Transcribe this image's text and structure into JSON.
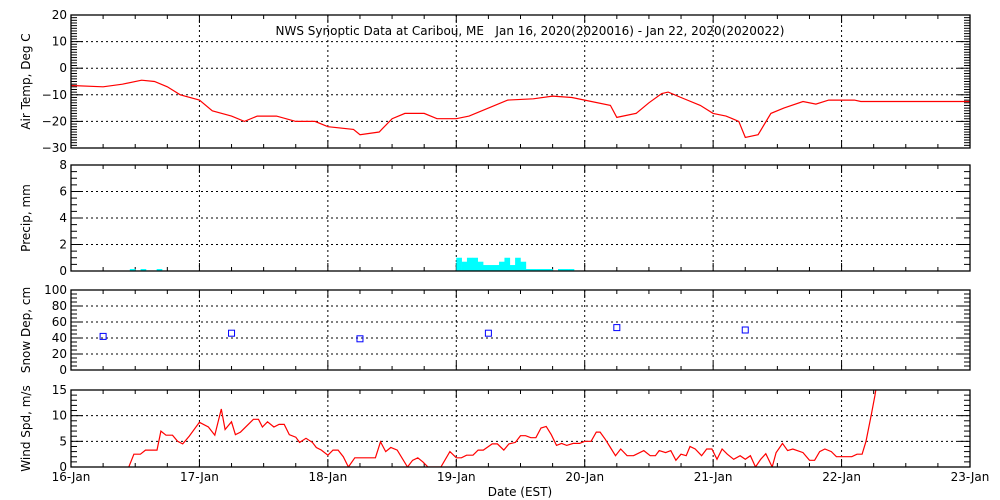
{
  "chart_data": {
    "title": "NWS Synoptic Data at Caribou, ME   Jan 16, 2020(2020016) - Jan 22, 2020(2020022)",
    "xlabel": "Date (EST)",
    "x_units": "days since 16-Jan 00:00 EST",
    "xlim": [
      0,
      7
    ],
    "x_tick_labels": [
      "16-Jan",
      "17-Jan",
      "18-Jan",
      "19-Jan",
      "20-Jan",
      "21-Jan",
      "22-Jan",
      "23-Jan"
    ],
    "grid": true,
    "panels": [
      {
        "type": "line",
        "name": "air-temp",
        "ylabel": "Air Temp, Deg C",
        "ylim": [
          -30,
          20
        ],
        "y_ticks": [
          20,
          10,
          0,
          -10,
          -20,
          -30
        ],
        "color": "#ff0000",
        "x": [
          0,
          0.25,
          0.4,
          0.55,
          0.65,
          0.75,
          0.85,
          1.0,
          1.1,
          1.25,
          1.35,
          1.45,
          1.6,
          1.75,
          1.9,
          2.0,
          2.2,
          2.25,
          2.4,
          2.5,
          2.6,
          2.75,
          2.85,
          3.0,
          3.1,
          3.25,
          3.4,
          3.6,
          3.75,
          3.9,
          4.0,
          4.2,
          4.25,
          4.4,
          4.5,
          4.6,
          4.65,
          4.75,
          4.9,
          5.0,
          5.1,
          5.15,
          5.2,
          5.25,
          5.35,
          5.45,
          5.55,
          5.7,
          5.8,
          5.9,
          6.1,
          6.15,
          7.0
        ],
        "y": [
          -6.5,
          -7,
          -6,
          -4.5,
          -5,
          -7,
          -10,
          -12,
          -16,
          -18,
          -20,
          -18,
          -18,
          -20,
          -20,
          -22,
          -23,
          -25,
          -24,
          -19,
          -17,
          -17,
          -19,
          -19,
          -18,
          -15,
          -12,
          -11.5,
          -10.5,
          -11,
          -12,
          -14,
          -18.5,
          -17,
          -13,
          -9.5,
          -9,
          -11,
          -14,
          -17,
          -18,
          -19,
          -20,
          -26,
          -25,
          -17,
          -15,
          -12.5,
          -13.5,
          -12,
          -12,
          -12.5,
          -12.5
        ]
      },
      {
        "type": "bar",
        "name": "precip",
        "ylabel": "Precip, mm",
        "ylim": [
          0,
          8
        ],
        "y_ticks": [
          8,
          6,
          4,
          2,
          0
        ],
        "color": "#00ffff",
        "bar_width_days": 0.0417,
        "x": [
          0.458,
          0.542,
          0.667,
          3.0,
          3.042,
          3.083,
          3.125,
          3.167,
          3.208,
          3.25,
          3.292,
          3.333,
          3.375,
          3.417,
          3.458,
          3.5,
          3.542,
          3.583,
          3.625,
          3.667,
          3.708,
          3.792,
          3.833,
          3.875
        ],
        "y": [
          0.15,
          0.15,
          0.15,
          1.0,
          0.7,
          1.0,
          1.0,
          0.7,
          0.45,
          0.45,
          0.45,
          0.7,
          1.0,
          0.45,
          1.0,
          0.7,
          0.15,
          0.15,
          0.15,
          0.15,
          0.15,
          0.15,
          0.15,
          0.15
        ]
      },
      {
        "type": "scatter",
        "name": "snow-depth",
        "ylabel": "Snow Dep, cm",
        "ylim": [
          0,
          100
        ],
        "y_ticks": [
          100,
          80,
          60,
          40,
          20,
          0
        ],
        "color": "#0000ff",
        "x": [
          0.25,
          1.25,
          2.25,
          3.25,
          4.25,
          5.25
        ],
        "y": [
          42,
          46,
          39,
          46,
          53,
          50
        ]
      },
      {
        "type": "line",
        "name": "wind-speed",
        "ylabel": "Wind Spd, m/s",
        "ylim": [
          0,
          15
        ],
        "y_ticks": [
          15,
          10,
          5,
          0
        ],
        "color": "#ff0000",
        "x": [
          0.45,
          0.49,
          0.54,
          0.58,
          0.67,
          0.7,
          0.74,
          0.79,
          0.83,
          0.87,
          0.92,
          1.0,
          1.07,
          1.12,
          1.17,
          1.2,
          1.25,
          1.28,
          1.32,
          1.42,
          1.46,
          1.49,
          1.53,
          1.58,
          1.62,
          1.66,
          1.7,
          1.75,
          1.78,
          1.83,
          1.88,
          1.91,
          1.95,
          2.0,
          2.04,
          2.08,
          2.12,
          2.16,
          2.21,
          2.37,
          2.41,
          2.45,
          2.49,
          2.54,
          2.62,
          2.66,
          2.7,
          2.74,
          2.78,
          2.88,
          2.95,
          3.0,
          3.04,
          3.08,
          3.13,
          3.17,
          3.21,
          3.28,
          3.32,
          3.37,
          3.41,
          3.46,
          3.5,
          3.54,
          3.58,
          3.62,
          3.66,
          3.7,
          3.74,
          3.78,
          3.82,
          3.86,
          3.91,
          3.96,
          4.0,
          4.05,
          4.09,
          4.12,
          4.16,
          4.2,
          4.24,
          4.28,
          4.33,
          4.38,
          4.46,
          4.51,
          4.55,
          4.58,
          4.63,
          4.67,
          4.71,
          4.75,
          4.79,
          4.82,
          4.86,
          4.91,
          4.95,
          4.99,
          5.03,
          5.07,
          5.11,
          5.16,
          5.21,
          5.25,
          5.29,
          5.33,
          5.37,
          5.41,
          5.46,
          5.49,
          5.54,
          5.58,
          5.62,
          5.7,
          5.75,
          5.79,
          5.83,
          5.87,
          5.92,
          5.96,
          6.08,
          6.12,
          6.16,
          6.19,
          6.23,
          6.26,
          6.27
        ],
        "y": [
          0,
          2.5,
          2.5,
          3.3,
          3.3,
          7,
          6.2,
          6.2,
          5,
          4.5,
          6,
          8.7,
          7.8,
          6.2,
          11.3,
          7.3,
          8.8,
          6.3,
          6.8,
          9.3,
          9.3,
          7.8,
          8.8,
          7.8,
          8.3,
          8.3,
          6.3,
          5.8,
          4.8,
          5.6,
          4.8,
          3.8,
          3.3,
          2.3,
          3.3,
          3.3,
          2,
          0,
          1.8,
          1.8,
          4.9,
          3,
          3.8,
          3.3,
          0,
          1.3,
          1.8,
          1,
          0,
          0,
          3,
          1.8,
          1.8,
          2.3,
          2.3,
          3.3,
          3.3,
          4.5,
          4.5,
          3.3,
          4.5,
          4.8,
          6.1,
          6.1,
          5.7,
          5.7,
          7.6,
          7.9,
          6.3,
          4.2,
          4.6,
          4.2,
          4.6,
          4.6,
          5,
          5,
          6.8,
          6.8,
          5.4,
          3.8,
          2.2,
          3.5,
          2.2,
          2.2,
          3.2,
          2.2,
          2.2,
          3.2,
          2.8,
          3.2,
          1.3,
          2.5,
          2.2,
          4,
          3.5,
          2.2,
          3.5,
          3.5,
          1.5,
          3.5,
          2.5,
          1.5,
          2.2,
          1.5,
          2.2,
          0,
          1.5,
          2.6,
          0,
          2.8,
          4.6,
          3.2,
          3.5,
          2.8,
          1.3,
          1.3,
          3,
          3.5,
          3,
          2,
          2,
          2.5,
          2.5,
          5,
          10,
          14,
          15.5
        ]
      }
    ]
  }
}
